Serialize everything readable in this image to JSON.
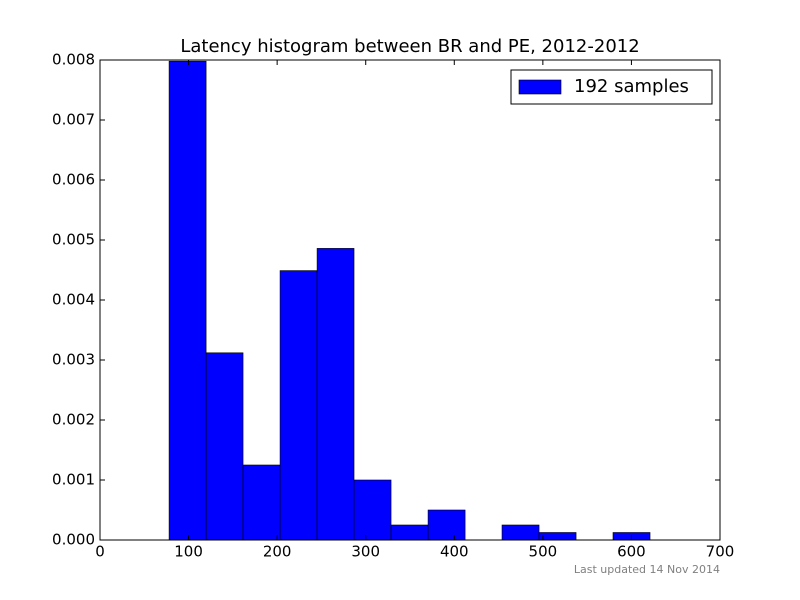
{
  "chart_data": {
    "type": "histogram",
    "title": "Latency histogram between BR and PE, 2012-2012",
    "bins": [
      78,
      119.8,
      161.5,
      203.3,
      245.1,
      286.8,
      328.6,
      370.4,
      412.2,
      453.9,
      495.7,
      537.5,
      579.2,
      621
    ],
    "series": [
      {
        "name": "192 samples",
        "color": "#0000ff",
        "values": [
          0.00798,
          0.00312,
          0.00125,
          0.00449,
          0.00486,
          0.001,
          0.00025,
          0.0005,
          0,
          0.00025,
          0.000125,
          0,
          0.000125
        ]
      }
    ],
    "xlim": [
      0,
      700
    ],
    "xticks": [
      0,
      100,
      200,
      300,
      400,
      500,
      600,
      700
    ],
    "ylim": [
      0,
      0.008
    ],
    "yticks": [
      {
        "value": 0,
        "label": "0.000"
      },
      0.001,
      0.002,
      0.003,
      0.004,
      0.005,
      0.006,
      0.007,
      0.008
    ],
    "legend": "upper right",
    "footer": "Last updated 14 Nov 2014"
  }
}
